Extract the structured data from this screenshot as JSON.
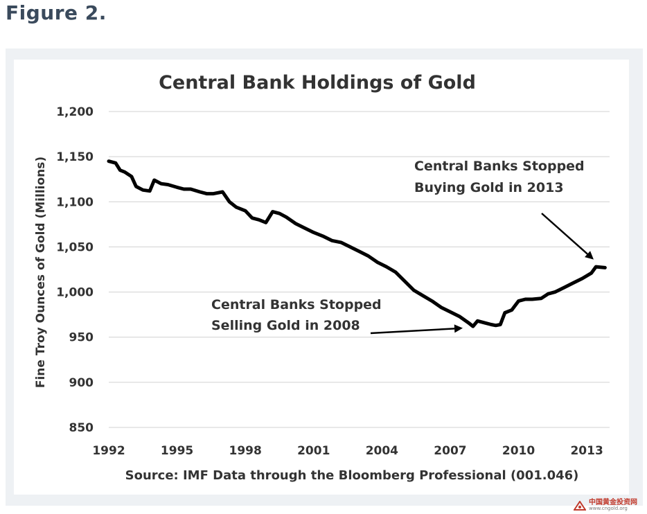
{
  "figure_label": "Figure 2.",
  "chart_data": {
    "type": "line",
    "title": "Central Bank Holdings of Gold",
    "xlabel": "",
    "ylabel": "Fine Troy Ounces of Gold (Millions)",
    "xlim": [
      1992,
      2014
    ],
    "ylim": [
      850,
      1200
    ],
    "x_ticks": [
      1992,
      1995,
      1998,
      2001,
      2004,
      2007,
      2010,
      2013
    ],
    "y_ticks": [
      850,
      900,
      950,
      1000,
      1050,
      1100,
      1150,
      1200
    ],
    "y_tick_labels": [
      "850",
      "900",
      "950",
      "1,000",
      "1,050",
      "1,100",
      "1,150",
      "1,200"
    ],
    "grid": "horizontal",
    "series": [
      {
        "x": [
          1992.0,
          1992.3,
          1992.5,
          1992.7,
          1993.0,
          1993.2,
          1993.5,
          1993.8,
          1994.0,
          1994.3,
          1994.6,
          1995.0,
          1995.3,
          1995.6,
          1996.0,
          1996.3,
          1996.6,
          1997.0,
          1997.3,
          1997.6,
          1998.0,
          1998.3,
          1998.6,
          1998.9,
          1999.2,
          1999.5,
          1999.8,
          2000.2,
          2000.6,
          2001.0,
          2001.4,
          2001.8,
          2002.2,
          2002.6,
          2003.0,
          2003.4,
          2003.8,
          2004.2,
          2004.6,
          2005.0,
          2005.4,
          2005.8,
          2006.2,
          2006.6,
          2007.0,
          2007.4,
          2007.8,
          2008.0,
          2008.2,
          2008.5,
          2008.8,
          2009.0,
          2009.2,
          2009.4,
          2009.7,
          2010.0,
          2010.3,
          2010.6,
          2011.0,
          2011.3,
          2011.6,
          2012.0,
          2012.4,
          2012.8,
          2013.2,
          2013.4,
          2013.8
        ],
        "values": [
          1145,
          1143,
          1135,
          1133,
          1128,
          1117,
          1113,
          1112,
          1124,
          1120,
          1119,
          1116,
          1114,
          1114,
          1111,
          1109,
          1109,
          1111,
          1100,
          1094,
          1090,
          1082,
          1080,
          1077,
          1089,
          1087,
          1083,
          1076,
          1071,
          1066,
          1062,
          1057,
          1055,
          1050,
          1045,
          1040,
          1033,
          1028,
          1022,
          1012,
          1002,
          996,
          990,
          983,
          978,
          973,
          966,
          962,
          968,
          966,
          964,
          963,
          964,
          977,
          980,
          990,
          992,
          992,
          993,
          998,
          1000,
          1005,
          1010,
          1015,
          1021,
          1028,
          1027
        ]
      }
    ],
    "annotations": [
      {
        "text": "Central Banks Stopped Buying Gold in 2013",
        "line1": "Central Banks Stopped",
        "line2": "Buying Gold in 2013",
        "x": 2013.3,
        "y": 1028
      },
      {
        "text": "Central Banks Stopped Selling Gold in 2008",
        "line1": "Central Banks Stopped",
        "line2": "Selling Gold in 2008",
        "x": 2007.9,
        "y": 962
      }
    ],
    "source": "Source:  IMF Data through the Bloomberg Professional (001.046)"
  },
  "watermark": {
    "title": "中国黄金投资网",
    "url": "www.cngold.org"
  },
  "colors": {
    "line": "#000000",
    "grid": "#d0d0d0",
    "text": "#333333",
    "panel": "#eef1f4",
    "figure_label": "#3a4a5c",
    "watermark": "#c0392b"
  }
}
